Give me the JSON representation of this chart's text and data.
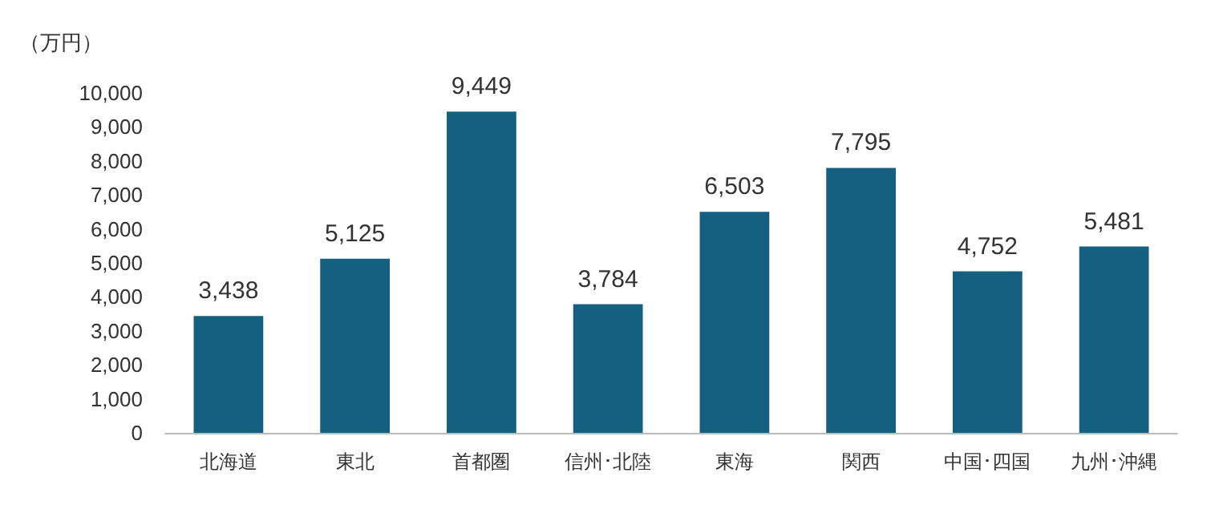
{
  "chart_data": {
    "type": "bar",
    "ylabel": "（万円）",
    "categories": [
      "北海道",
      "東北",
      "首都圏",
      "信州･北陸",
      "東海",
      "関西",
      "中国･四国",
      "九州･沖縄"
    ],
    "values": [
      3438,
      5125,
      9449,
      3784,
      6503,
      7795,
      4752,
      5481
    ],
    "value_labels": [
      "3,438",
      "5,125",
      "9,449",
      "3,784",
      "6,503",
      "7,795",
      "4,752",
      "5,481"
    ],
    "color": "#155f80",
    "ylim": [
      0,
      10000
    ],
    "yticks": [
      0,
      {
        "value": 1000,
        "label": "1,000"
      },
      {
        "value": 2000,
        "label": "2,000"
      },
      {
        "value": 3000,
        "label": "3,000"
      },
      {
        "value": 4000,
        "label": "4,000"
      },
      {
        "value": 5000,
        "label": "5,000"
      },
      {
        "value": 6000,
        "label": "6,000"
      },
      {
        "value": 7000,
        "label": "7,000"
      },
      {
        "value": 8000,
        "label": "8,000"
      },
      {
        "value": 9000,
        "label": "9,000"
      },
      {
        "value": 10000,
        "label": "10,000"
      }
    ],
    "grid": false
  }
}
